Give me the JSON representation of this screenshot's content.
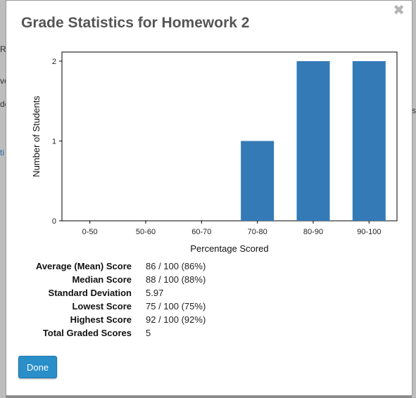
{
  "background_fragments": [
    "R",
    "ve",
    "de",
    "ti",
    "s"
  ],
  "modal": {
    "title": "Grade Statistics for Homework 2",
    "close_glyph": "✖",
    "done_label": "Done"
  },
  "chart_data": {
    "type": "bar",
    "categories": [
      "0-50",
      "50-60",
      "60-70",
      "70-80",
      "80-90",
      "90-100"
    ],
    "values": [
      0,
      0,
      0,
      1,
      2,
      2
    ],
    "xlabel": "Percentage Scored",
    "ylabel": "Number of Students",
    "ylim": [
      0,
      2
    ],
    "yticks": [
      "0",
      "1",
      "2"
    ],
    "bar_color": "#337ab7",
    "grid": false
  },
  "stats": [
    {
      "label": "Average (Mean) Score",
      "value": "86 / 100 (86%)"
    },
    {
      "label": "Median Score",
      "value": "88 / 100 (88%)"
    },
    {
      "label": "Standard Deviation",
      "value": "5.97"
    },
    {
      "label": "Lowest Score",
      "value": "75 / 100 (75%)"
    },
    {
      "label": "Highest Score",
      "value": "92 / 100 (92%)"
    },
    {
      "label": "Total Graded Scores",
      "value": "5"
    }
  ],
  "colors": {
    "accent": "#2a8ec9",
    "title": "#555555"
  }
}
